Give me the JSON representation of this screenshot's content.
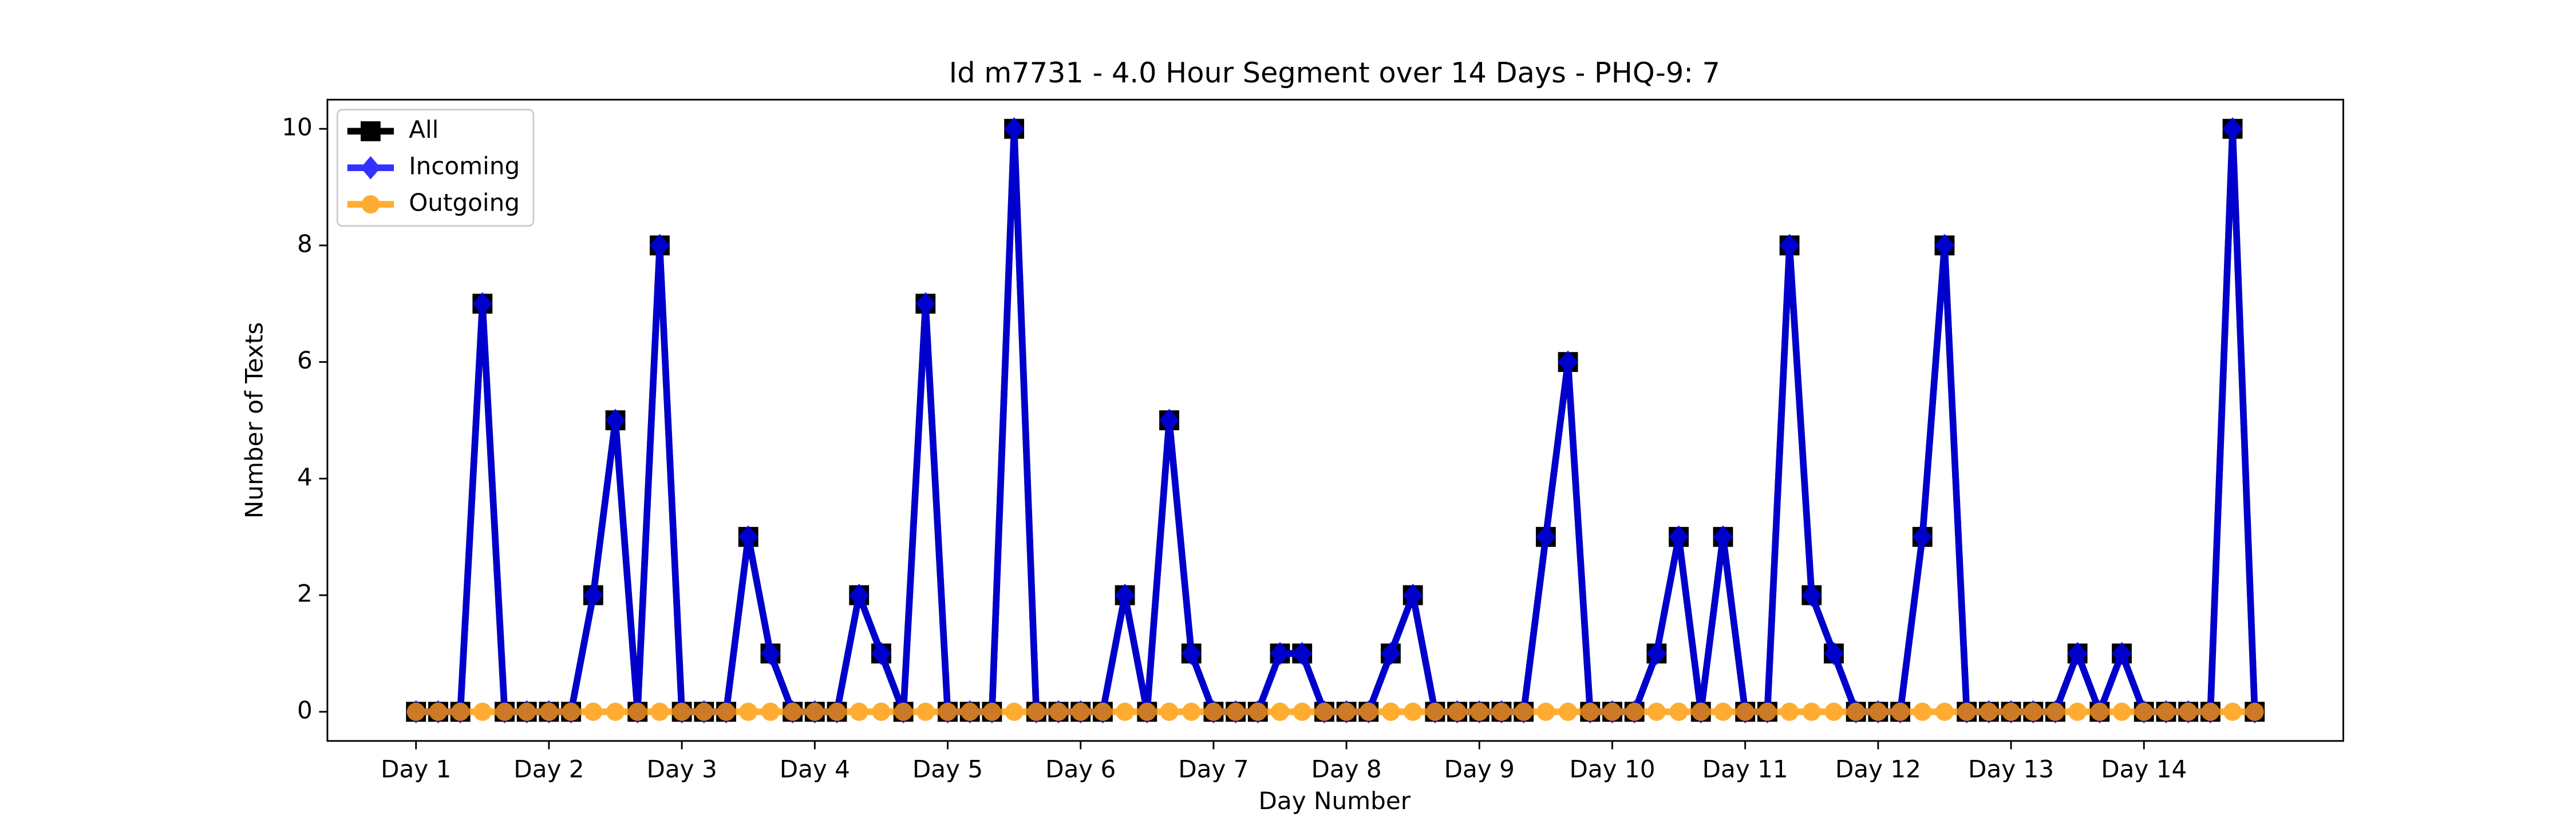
{
  "chart_data": {
    "type": "line",
    "title": "Id m7731 - 4.0 Hour Segment over 14 Days - PHQ-9: 7",
    "xlabel": "Day Number",
    "ylabel": "Number of Texts",
    "categories": [
      "Day 1",
      null,
      null,
      null,
      null,
      null,
      "Day 2",
      null,
      null,
      null,
      null,
      null,
      "Day 3",
      null,
      null,
      null,
      null,
      null,
      "Day 4",
      null,
      null,
      null,
      null,
      null,
      "Day 5",
      null,
      null,
      null,
      null,
      null,
      "Day 6",
      null,
      null,
      null,
      null,
      null,
      "Day 7",
      null,
      null,
      null,
      null,
      null,
      "Day 8",
      null,
      null,
      null,
      null,
      null,
      "Day 9",
      null,
      null,
      null,
      null,
      null,
      "Day 10",
      null,
      null,
      null,
      null,
      null,
      "Day 11",
      null,
      null,
      null,
      null,
      null,
      "Day 12",
      null,
      null,
      null,
      null,
      null,
      "Day 13",
      null,
      null,
      null,
      null,
      null,
      "Day 14",
      null,
      null,
      null,
      null,
      null
    ],
    "series": [
      {
        "name": "All",
        "color": "#000000",
        "marker": "square",
        "values": [
          0,
          0,
          0,
          7,
          0,
          0,
          0,
          0,
          2,
          5,
          0,
          8,
          0,
          0,
          0,
          3,
          1,
          0,
          0,
          0,
          2,
          1,
          0,
          7,
          0,
          0,
          0,
          10,
          0,
          0,
          0,
          0,
          2,
          0,
          5,
          1,
          0,
          0,
          0,
          1,
          1,
          0,
          0,
          0,
          1,
          2,
          0,
          0,
          0,
          0,
          0,
          3,
          6,
          0,
          0,
          0,
          1,
          3,
          0,
          3,
          0,
          0,
          8,
          2,
          1,
          0,
          0,
          0,
          3,
          8,
          0,
          0,
          0,
          0,
          0,
          1,
          0,
          1,
          0,
          0,
          0,
          0,
          10,
          0
        ]
      },
      {
        "name": "Incoming",
        "color": "#0000ff",
        "marker": "diamond",
        "values": [
          0,
          0,
          0,
          7,
          0,
          0,
          0,
          0,
          2,
          5,
          0,
          8,
          0,
          0,
          0,
          3,
          1,
          0,
          0,
          0,
          2,
          1,
          0,
          7,
          0,
          0,
          0,
          10,
          0,
          0,
          0,
          0,
          2,
          0,
          5,
          1,
          0,
          0,
          0,
          1,
          1,
          0,
          0,
          0,
          1,
          2,
          0,
          0,
          0,
          0,
          0,
          3,
          6,
          0,
          0,
          0,
          1,
          3,
          0,
          3,
          0,
          0,
          8,
          2,
          1,
          0,
          0,
          0,
          3,
          8,
          0,
          0,
          0,
          0,
          0,
          1,
          0,
          1,
          0,
          0,
          0,
          0,
          10,
          0
        ]
      },
      {
        "name": "Outgoing",
        "color": "#ff9900",
        "marker": "circle",
        "values": [
          0,
          0,
          0,
          0,
          0,
          0,
          0,
          0,
          0,
          0,
          0,
          0,
          0,
          0,
          0,
          0,
          0,
          0,
          0,
          0,
          0,
          0,
          0,
          0,
          0,
          0,
          0,
          0,
          0,
          0,
          0,
          0,
          0,
          0,
          0,
          0,
          0,
          0,
          0,
          0,
          0,
          0,
          0,
          0,
          0,
          0,
          0,
          0,
          0,
          0,
          0,
          0,
          0,
          0,
          0,
          0,
          0,
          0,
          0,
          0,
          0,
          0,
          0,
          0,
          0,
          0,
          0,
          0,
          0,
          0,
          0,
          0,
          0,
          0,
          0,
          0,
          0,
          0,
          0,
          0,
          0,
          0,
          0,
          0
        ]
      }
    ],
    "ylim": [
      -0.5,
      10.5
    ],
    "yticks": [
      0,
      2,
      4,
      6,
      8,
      10
    ],
    "legend": "upper left",
    "grid": false
  }
}
